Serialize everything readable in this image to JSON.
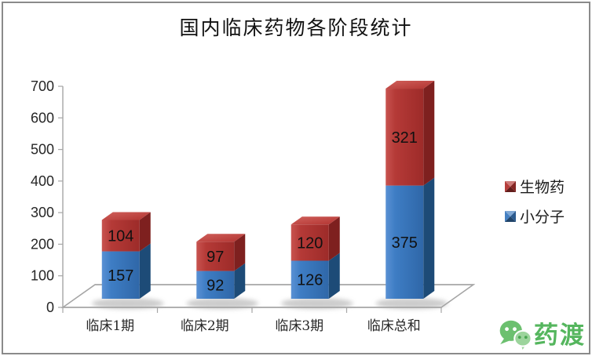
{
  "title": "国内临床药物各阶段统计",
  "chart_data": {
    "type": "bar",
    "subtype": "3d-stacked-column",
    "title": "国内临床药物各阶段统计",
    "categories": [
      "临床1期",
      "临床2期",
      "临床3期",
      "临床总和"
    ],
    "series": [
      {
        "name": "小分子",
        "color": "#3B79BF",
        "values": [
          157,
          92,
          126,
          375
        ]
      },
      {
        "name": "生物药",
        "color": "#B23431",
        "values": [
          104,
          97,
          120,
          321
        ]
      }
    ],
    "stacked": true,
    "xlabel": "",
    "ylabel": "",
    "ylim": [
      0,
      700
    ],
    "yticks": [
      0,
      100,
      200,
      300,
      400,
      500,
      600,
      700
    ],
    "grid": false,
    "legend_position": "right",
    "value_labels": "inside"
  },
  "legend": {
    "items": [
      {
        "label": "生物药",
        "color": "#B23431"
      },
      {
        "label": "小分子",
        "color": "#3B79BF"
      }
    ]
  },
  "branding": {
    "logo_text": "药渡",
    "logo_color": "#55B65E",
    "logo_icon": "wechat-bubbles-icon"
  }
}
